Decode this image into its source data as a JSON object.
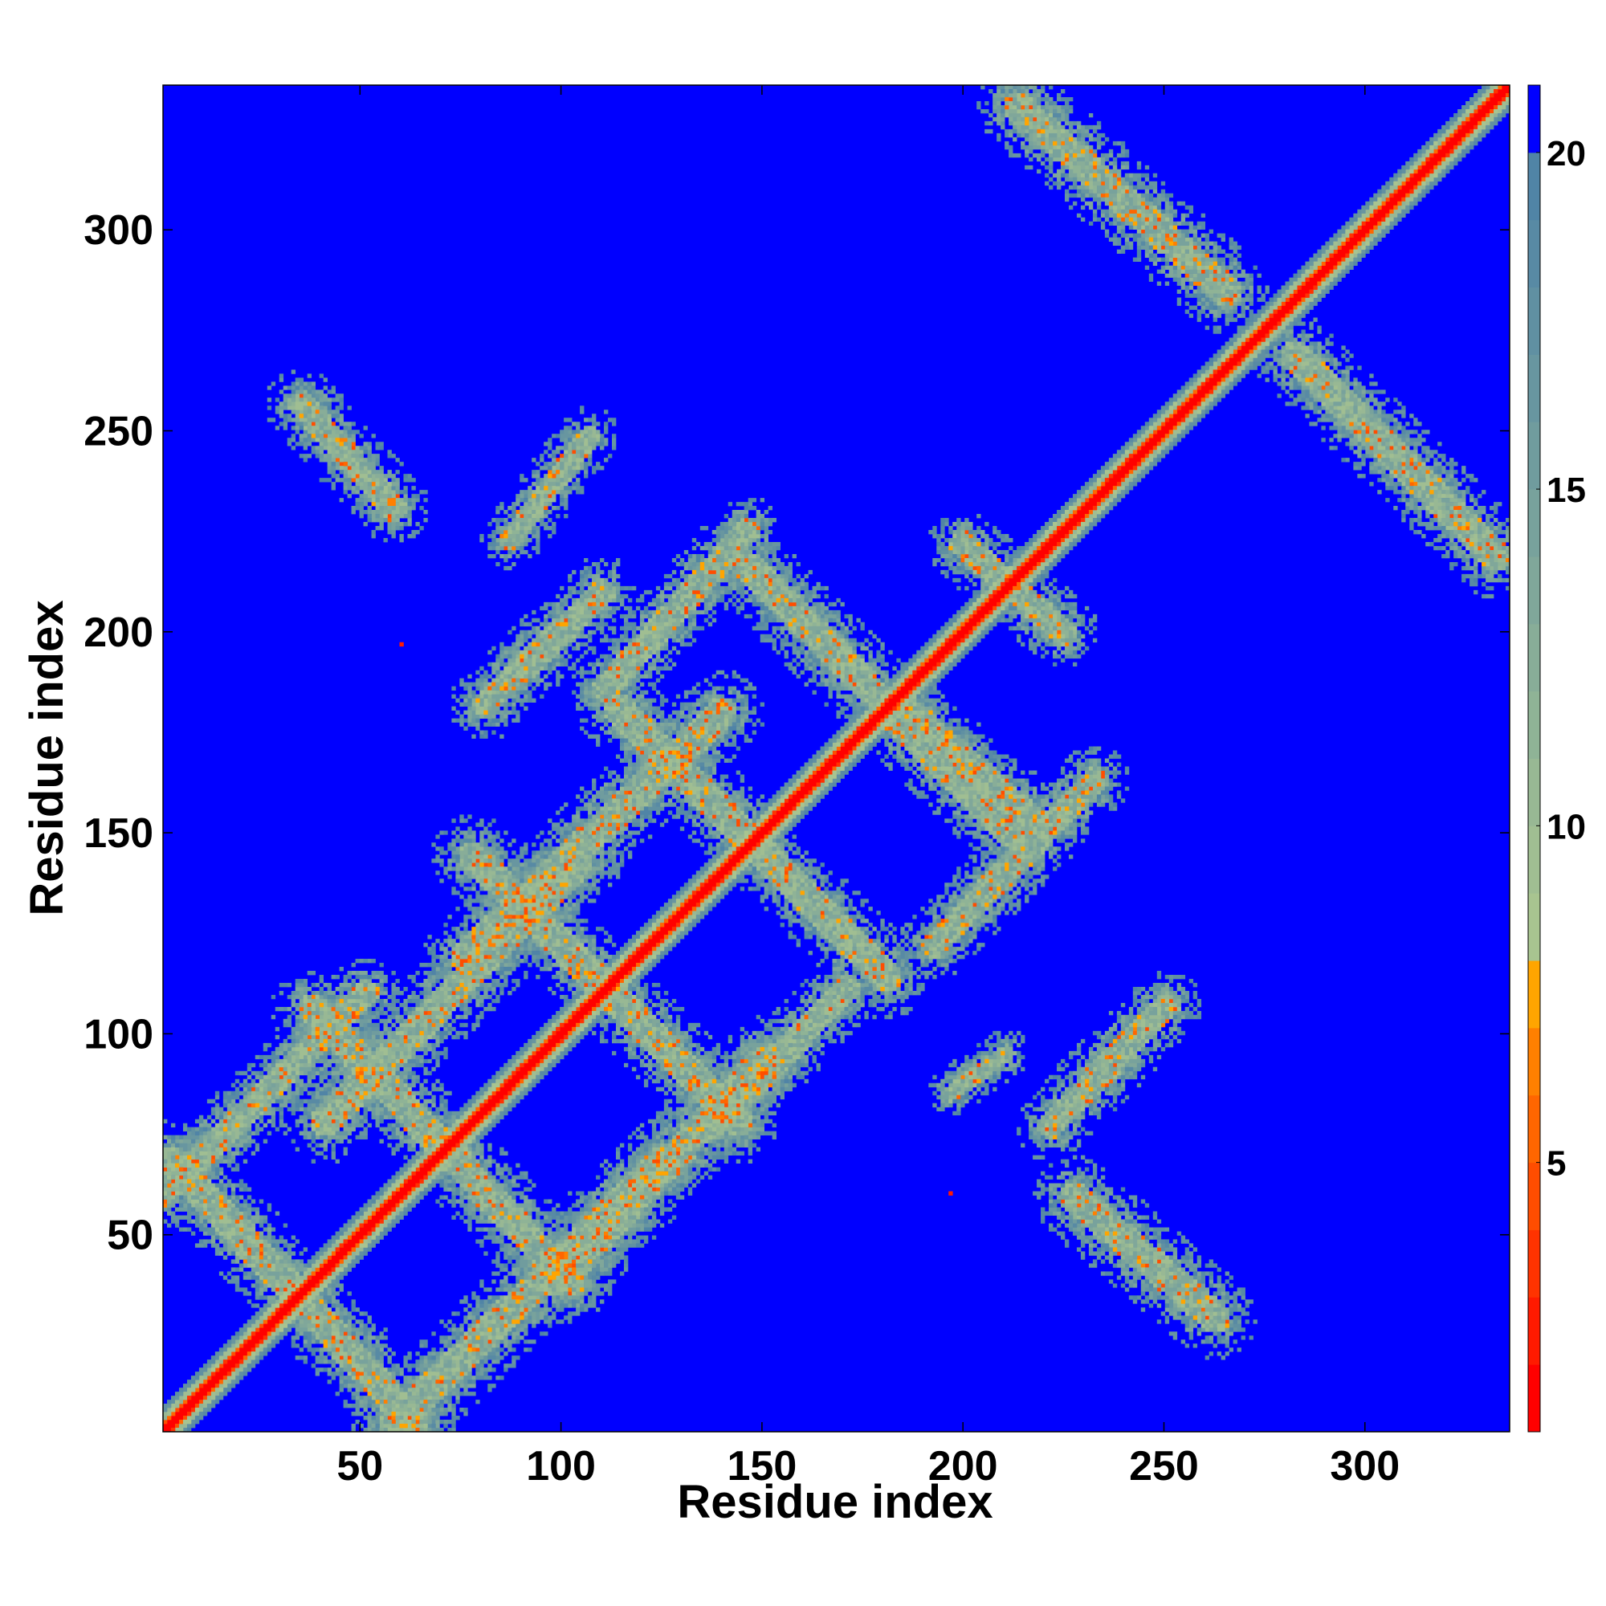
{
  "chart_data": {
    "type": "heatmap",
    "title": "",
    "xlabel": "Residue index",
    "ylabel": "Residue index",
    "xlim": [
      1,
      336
    ],
    "ylim": [
      1,
      336
    ],
    "x_ticks": [
      50,
      100,
      150,
      200,
      250,
      300
    ],
    "y_ticks": [
      50,
      100,
      150,
      200,
      250,
      300
    ],
    "colorbar": {
      "ticks": [
        5,
        10,
        15,
        20
      ],
      "range": [
        1,
        21
      ],
      "levels": [
        {
          "max": 2,
          "color": "#ff0000"
        },
        {
          "max": 3,
          "color": "#ff1a00"
        },
        {
          "max": 4,
          "color": "#ff3300"
        },
        {
          "max": 5,
          "color": "#ff4d00"
        },
        {
          "max": 6,
          "color": "#ff6600"
        },
        {
          "max": 7,
          "color": "#ff8000"
        },
        {
          "max": 8,
          "color": "#ffa500"
        },
        {
          "max": 9,
          "color": "#a8c490"
        },
        {
          "max": 10,
          "color": "#a0be92"
        },
        {
          "max": 11,
          "color": "#98b894"
        },
        {
          "max": 12,
          "color": "#8fb396"
        },
        {
          "max": 13,
          "color": "#88ad98"
        },
        {
          "max": 14,
          "color": "#80a79a"
        },
        {
          "max": 15,
          "color": "#78a29c"
        },
        {
          "max": 16,
          "color": "#709c9e"
        },
        {
          "max": 17,
          "color": "#6896a0"
        },
        {
          "max": 18,
          "color": "#6090a2"
        },
        {
          "max": 19,
          "color": "#588aa4"
        },
        {
          "max": 20,
          "color": "#5084a6"
        },
        {
          "max": 21,
          "color": "#0000ff"
        }
      ]
    },
    "background_value": 21,
    "features": [
      {
        "kind": "diagonal",
        "from": 1,
        "to": 336,
        "width": 7
      },
      {
        "kind": "antiparallel",
        "from": [
          2,
          67
        ],
        "to": [
          62,
          2
        ],
        "width": 7
      },
      {
        "kind": "antiparallel",
        "from": [
          37,
          105
        ],
        "to": [
          101,
          37
        ],
        "width": 7
      },
      {
        "kind": "antiparallel",
        "from": [
          77,
          143
        ],
        "to": [
          143,
          77
        ],
        "width": 7
      },
      {
        "kind": "antiparallel",
        "from": [
          113,
          180
        ],
        "to": [
          180,
          113
        ],
        "width": 7
      },
      {
        "kind": "antiparallel",
        "from": [
          146,
          215
        ],
        "to": [
          211,
          149
        ],
        "width": 7
      },
      {
        "kind": "antiparallel",
        "from": [
          186,
          179
        ],
        "to": [
          216,
          153
        ],
        "width": 6
      },
      {
        "kind": "antiparallel",
        "from": [
          282,
          268
        ],
        "to": [
          332,
          218
        ],
        "width": 7
      },
      {
        "kind": "antiparallel",
        "from": [
          213,
          330
        ],
        "to": [
          265,
          284
        ],
        "width": 7
      },
      {
        "kind": "antiparallel",
        "from": [
          34,
          256
        ],
        "to": [
          57,
          230
        ],
        "width": 6
      },
      {
        "kind": "antiparallel",
        "from": [
          227,
          58
        ],
        "to": [
          262,
          28
        ],
        "width": 7
      },
      {
        "kind": "antiparallel",
        "from": [
          199,
          221
        ],
        "to": [
          224,
          199
        ],
        "width": 6
      },
      {
        "kind": "parallel",
        "from": [
          0,
          59
        ],
        "to": [
          50,
          109
        ],
        "width": 6
      },
      {
        "kind": "parallel",
        "from": [
          40,
          77
        ],
        "to": [
          103,
          141
        ],
        "width": 7
      },
      {
        "kind": "parallel",
        "from": [
          75,
          118
        ],
        "to": [
          139,
          179
        ],
        "width": 7
      },
      {
        "kind": "parallel",
        "from": [
          80,
          181
        ],
        "to": [
          109,
          209
        ],
        "width": 6
      },
      {
        "kind": "parallel",
        "from": [
          110,
          185
        ],
        "to": [
          145,
          224
        ],
        "width": 6
      },
      {
        "kind": "parallel",
        "from": [
          57,
          1
        ],
        "to": [
          125,
          68
        ],
        "width": 7
      },
      {
        "kind": "parallel",
        "from": [
          98,
          37
        ],
        "to": [
          150,
          93
        ],
        "width": 7
      },
      {
        "kind": "parallel",
        "from": [
          137,
          76
        ],
        "to": [
          170,
          110
        ],
        "width": 6
      },
      {
        "kind": "parallel",
        "from": [
          192,
          121
        ],
        "to": [
          232,
          162
        ],
        "width": 6
      },
      {
        "kind": "parallel",
        "from": [
          221,
          76
        ],
        "to": [
          250,
          106
        ],
        "width": 6
      },
      {
        "kind": "parallel",
        "from": [
          196,
          84
        ],
        "to": [
          210,
          94
        ],
        "width": 4
      },
      {
        "kind": "parallel",
        "from": [
          86,
          222
        ],
        "to": [
          106,
          248
        ],
        "width": 5
      }
    ],
    "isolated_points": [
      {
        "x": 60,
        "y": 197,
        "value": 3
      },
      {
        "x": 197,
        "y": 60,
        "value": 3
      }
    ]
  }
}
